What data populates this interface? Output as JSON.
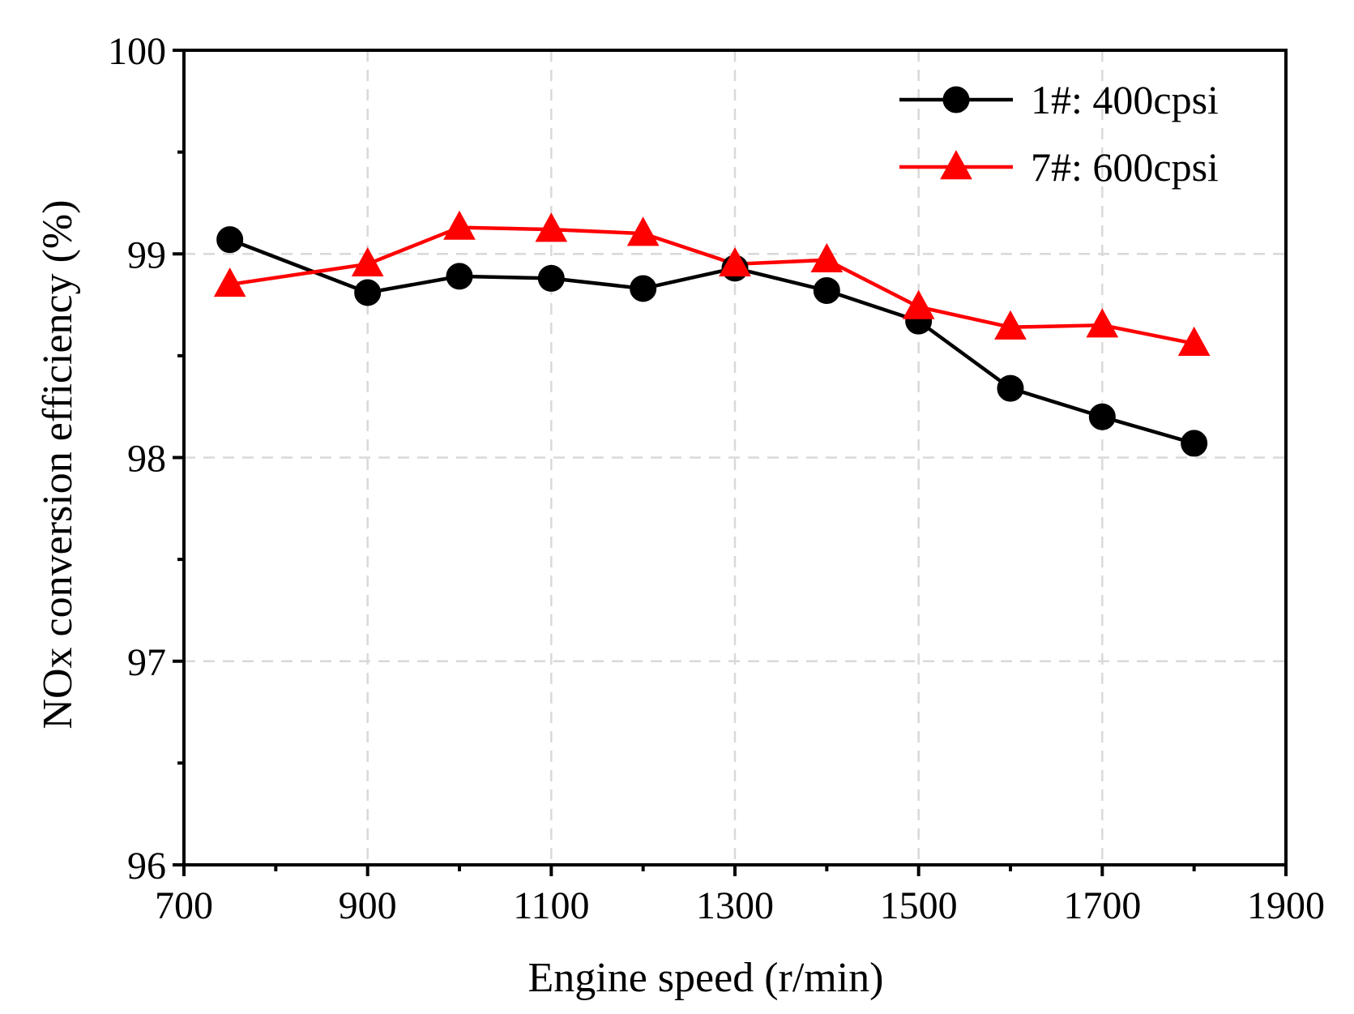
{
  "chart_data": {
    "type": "line",
    "title": "",
    "xlabel": "Engine speed (r/min)",
    "ylabel": "NOx conversion efficiency (%)",
    "xlim": [
      700,
      1900
    ],
    "ylim": [
      96,
      100
    ],
    "xticks": [
      700,
      900,
      1100,
      1300,
      1500,
      1700,
      1900
    ],
    "yticks": [
      96,
      97,
      98,
      99,
      100
    ],
    "x_minor_step": 100,
    "y_minor_step": 0.5,
    "grid": true,
    "legend_position": "top-right",
    "x": [
      750,
      900,
      1000,
      1100,
      1200,
      1300,
      1400,
      1500,
      1600,
      1700,
      1800
    ],
    "series": [
      {
        "name": "1#: 400cpsi",
        "color": "#000000",
        "marker": "circle",
        "values": [
          99.07,
          98.81,
          98.89,
          98.88,
          98.83,
          98.93,
          98.82,
          98.67,
          98.34,
          98.2,
          98.07
        ]
      },
      {
        "name": "7#: 600cpsi",
        "color": "#ff0000",
        "marker": "triangle",
        "values": [
          98.85,
          98.95,
          99.13,
          99.12,
          99.1,
          98.95,
          98.97,
          98.74,
          98.64,
          98.65,
          98.56
        ]
      }
    ]
  }
}
